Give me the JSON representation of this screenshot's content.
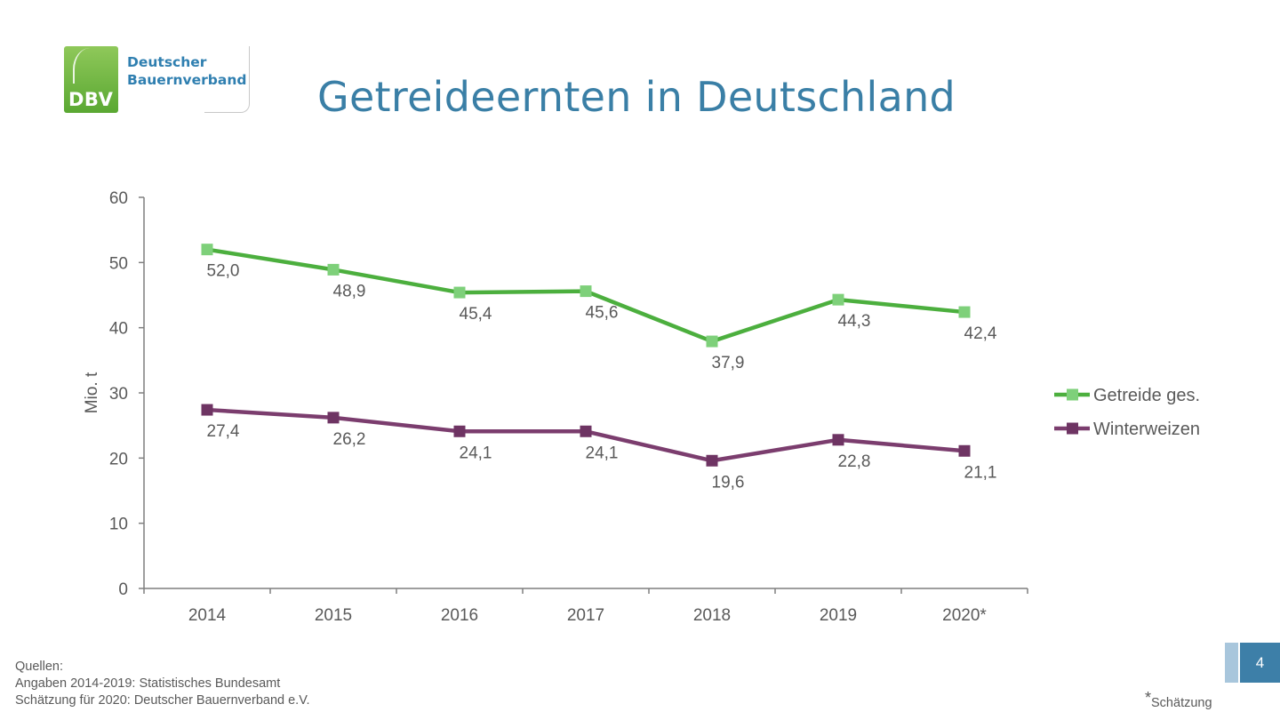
{
  "logo": {
    "abbr": "DBV",
    "name_line1": "Deutscher",
    "name_line2": "Bauernverband"
  },
  "title": "Getreideernten in Deutschland",
  "chart_data": {
    "type": "line",
    "categories": [
      "2014",
      "2015",
      "2016",
      "2017",
      "2018",
      "2019",
      "2020*"
    ],
    "ylabel": "Mio. t",
    "ylim": [
      0,
      60
    ],
    "yticks": [
      "0",
      "10",
      "20",
      "30",
      "40",
      "50",
      "60"
    ],
    "grid": false,
    "legend_position": "right",
    "series": [
      {
        "name": "Getreide ges.",
        "color": "#4caf3e",
        "marker_color": "#7ed07a",
        "values": [
          52.0,
          48.9,
          45.4,
          45.6,
          37.9,
          44.3,
          42.4
        ],
        "labels": [
          "52,0",
          "48,9",
          "45,4",
          "45,6",
          "37,9",
          "44,3",
          "42,4"
        ]
      },
      {
        "name": "Winterweizen",
        "color": "#7b3d6e",
        "marker_color": "#6e3463",
        "values": [
          27.4,
          26.2,
          24.1,
          24.1,
          19.6,
          22.8,
          21.1
        ],
        "labels": [
          "27,4",
          "26,2",
          "24,1",
          "24,1",
          "19,6",
          "22,8",
          "21,1"
        ]
      }
    ]
  },
  "sources": {
    "heading": "Quellen:",
    "line1": "Angaben 2014-2019: Statistisches Bundesamt",
    "line2": "Schätzung für 2020: Deutscher Bauernverband e.V."
  },
  "footnote": {
    "star": "*",
    "text": "Schätzung"
  },
  "page_number": "4"
}
